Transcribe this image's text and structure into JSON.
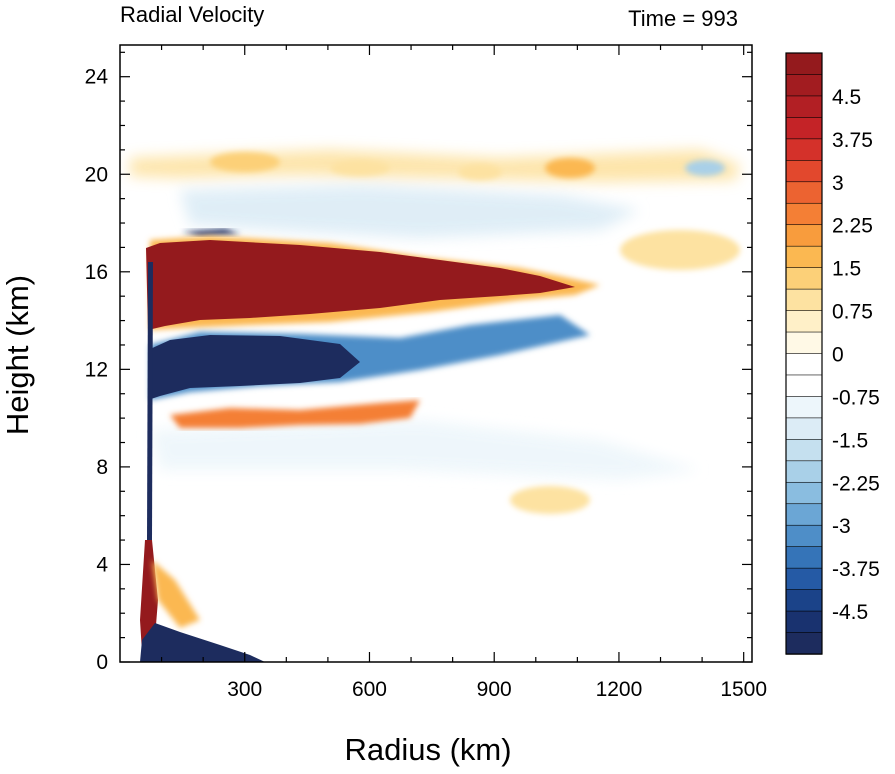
{
  "chart_data": {
    "type": "heatmap",
    "title_left": "Radial Velocity",
    "title_right": "Time = 993",
    "xlabel": "Radius (km)",
    "ylabel": "Height (km)",
    "xlim": [
      0,
      1520
    ],
    "ylim": [
      0,
      25.3
    ],
    "xticks": [
      300,
      600,
      900,
      1200,
      1500
    ],
    "xtick_labels": [
      "300",
      "600",
      "900",
      "1200",
      "1500"
    ],
    "yticks": [
      0,
      4,
      8,
      12,
      16,
      20,
      24
    ],
    "ytick_labels": [
      "0",
      "4",
      "8",
      "12",
      "16",
      "20",
      "24"
    ],
    "colorbar": {
      "range": [
        -5.25,
        5.25
      ],
      "step": 0.375,
      "tick_values": [
        4.5,
        3.75,
        3,
        2.25,
        1.5,
        0.75,
        0,
        -0.75,
        -1.5,
        -2.25,
        -3,
        -3.75,
        -4.5
      ],
      "tick_labels": [
        "4.5",
        "3.75",
        "3",
        "2.25",
        "1.5",
        "0.75",
        "0",
        "-0.75",
        "-1.5",
        "-2.25",
        "-3",
        "-3.75",
        "-4.5"
      ],
      "colors_top_to_bottom": [
        "#941a1d",
        "#a21c20",
        "#b21f24",
        "#c42327",
        "#d4312a",
        "#e2482d",
        "#ec6331",
        "#f47f35",
        "#f89c3d",
        "#fbb851",
        "#fcd078",
        "#fde2a1",
        "#fff0c8",
        "#fff9e6",
        "#ffffff",
        "#ffffff",
        "#edf6fb",
        "#dcecf6",
        "#c5e0ef",
        "#a9d0e8",
        "#8abde0",
        "#6ba6d5",
        "#4e8ec8",
        "#3574b8",
        "#255aa5",
        "#1b4389",
        "#19326f",
        "#1d2c5e"
      ]
    },
    "features": [
      {
        "name": "upper outflow (outward)",
        "sign": "positive",
        "r": [
          60,
          1150
        ],
        "z": [
          13.5,
          17.3
        ],
        "peak": 5.25
      },
      {
        "name": "inflow beneath outflow",
        "sign": "negative",
        "r": [
          65,
          700
        ],
        "z": [
          10.5,
          14.4
        ],
        "peak": -5.25
      },
      {
        "name": "mid-level outward band",
        "sign": "positive",
        "r": [
          100,
          720
        ],
        "z": [
          9.4,
          10.6
        ],
        "peak": 3.3
      },
      {
        "name": "boundary-layer inflow",
        "sign": "negative",
        "r": [
          55,
          330
        ],
        "z": [
          0,
          1.8
        ],
        "peak": -5.25
      },
      {
        "name": "low-level eyewall outflow",
        "sign": "positive",
        "r": [
          45,
          90
        ],
        "z": [
          0.5,
          5.0
        ],
        "peak": 5.25
      },
      {
        "name": "upper weak outward patches",
        "sign": "positive",
        "r": [
          300,
          1500
        ],
        "z": [
          19.5,
          21.0
        ],
        "peak": 2.0
      }
    ]
  }
}
